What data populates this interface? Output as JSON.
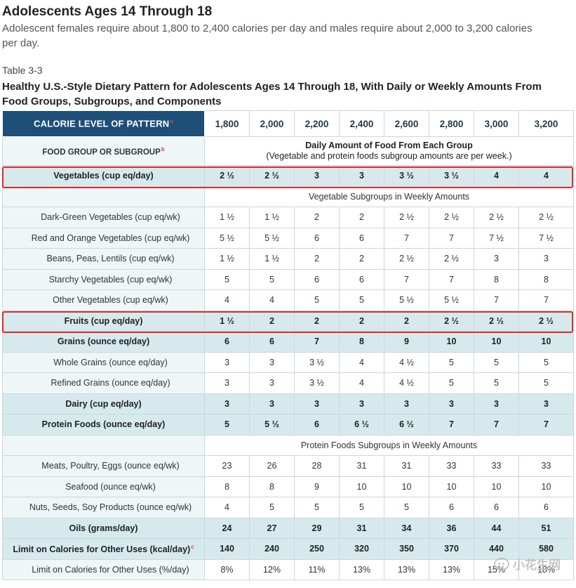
{
  "page": {
    "heading": "Adolescents Ages 14 Through 18",
    "intro": "Adolescent females require about 1,800 to 2,400 calories per day and males require about 2,000 to 3,200 calories per day.",
    "table_number": "Table 3-3",
    "table_caption": "Healthy U.S.-Style Dietary Pattern for Adolescents Ages 14 Through 18, With Daily or Weekly Amounts From Food Groups, Subgroups, and Components"
  },
  "table": {
    "header_label": "CALORIE LEVEL OF PATTERN",
    "header_sup": "a",
    "calorie_levels": [
      "1,800",
      "2,000",
      "2,200",
      "2,400",
      "2,600",
      "2,800",
      "3,000",
      "3,200"
    ],
    "food_group_label": "FOOD GROUP OR SUBGROUP",
    "food_group_sup": "b",
    "daily_amount_title": "Daily Amount of Food From Each Group",
    "daily_amount_note": "(Vegetable and protein foods subgroup amounts are per week.)",
    "rows": [
      {
        "label": "Vegetables (cup eq/day)",
        "values": [
          "2 ½",
          "2 ½",
          "3",
          "3",
          "3 ½",
          "3 ½",
          "4",
          "4"
        ]
      },
      {
        "label": "Vegetable Subgroups in Weekly Amounts"
      },
      {
        "label": "Dark-Green Vegetables (cup eq/wk)",
        "values": [
          "1 ½",
          "1 ½",
          "2",
          "2",
          "2 ½",
          "2 ½",
          "2 ½",
          "2 ½"
        ]
      },
      {
        "label": "Red and Orange Vegetables (cup eq/wk)",
        "values": [
          "5 ½",
          "5 ½",
          "6",
          "6",
          "7",
          "7",
          "7 ½",
          "7 ½"
        ]
      },
      {
        "label": "Beans, Peas, Lentils (cup eq/wk)",
        "values": [
          "1 ½",
          "1 ½",
          "2",
          "2",
          "2 ½",
          "2 ½",
          "3",
          "3"
        ]
      },
      {
        "label": "Starchy Vegetables (cup eq/wk)",
        "values": [
          "5",
          "5",
          "6",
          "6",
          "7",
          "7",
          "8",
          "8"
        ]
      },
      {
        "label": "Other Vegetables (cup eq/wk)",
        "values": [
          "4",
          "4",
          "5",
          "5",
          "5 ½",
          "5 ½",
          "7",
          "7"
        ]
      },
      {
        "label": "Fruits (cup eq/day)",
        "values": [
          "1 ½",
          "2",
          "2",
          "2",
          "2",
          "2 ½",
          "2 ½",
          "2 ½"
        ]
      },
      {
        "label": "Grains (ounce eq/day)",
        "values": [
          "6",
          "6",
          "7",
          "8",
          "9",
          "10",
          "10",
          "10"
        ]
      },
      {
        "label": "Whole Grains (ounce eq/day)",
        "values": [
          "3",
          "3",
          "3 ½",
          "4",
          "4 ½",
          "5",
          "5",
          "5"
        ]
      },
      {
        "label": "Refined Grains (ounce eq/day)",
        "values": [
          "3",
          "3",
          "3 ½",
          "4",
          "4 ½",
          "5",
          "5",
          "5"
        ]
      },
      {
        "label": "Dairy (cup eq/day)",
        "values": [
          "3",
          "3",
          "3",
          "3",
          "3",
          "3",
          "3",
          "3"
        ]
      },
      {
        "label": "Protein Foods (ounce eq/day)",
        "values": [
          "5",
          "5 ½",
          "6",
          "6 ½",
          "6 ½",
          "7",
          "7",
          "7"
        ]
      },
      {
        "label": "Protein Foods Subgroups in Weekly Amounts"
      },
      {
        "label": "Meats, Poultry, Eggs (ounce eq/wk)",
        "values": [
          "23",
          "26",
          "28",
          "31",
          "31",
          "33",
          "33",
          "33"
        ]
      },
      {
        "label": "Seafood (ounce eq/wk)",
        "values": [
          "8",
          "8",
          "9",
          "10",
          "10",
          "10",
          "10",
          "10"
        ]
      },
      {
        "label": "Nuts, Seeds, Soy Products (ounce eq/wk)",
        "values": [
          "4",
          "5",
          "5",
          "5",
          "5",
          "6",
          "6",
          "6"
        ]
      },
      {
        "label": "Oils (grams/day)",
        "values": [
          "24",
          "27",
          "29",
          "31",
          "34",
          "36",
          "44",
          "51"
        ]
      },
      {
        "label": "Limit on Calories for Other Uses (kcal/day)",
        "sup": "c",
        "values": [
          "140",
          "240",
          "250",
          "320",
          "350",
          "370",
          "440",
          "580"
        ]
      },
      {
        "label": "Limit on Calories for Other Uses (%/day)",
        "values": [
          "8%",
          "12%",
          "11%",
          "13%",
          "13%",
          "13%",
          "15%",
          "18%"
        ]
      }
    ]
  },
  "watermark": {
    "text": "小花生网",
    "icon": "wechat-icon"
  },
  "colors": {
    "header_bg": "#1d4f78",
    "category_bg": "#d6eaed",
    "highlight": "#e22c2c"
  }
}
